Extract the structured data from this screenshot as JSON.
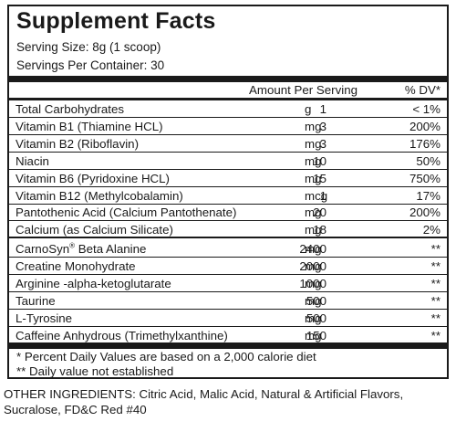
{
  "panel": {
    "title": "Supplement Facts",
    "serving_size": "Serving Size:  8g  (1 scoop)",
    "servings_per_container": "Servings Per Container: 30",
    "header_amount": "Amount Per Serving",
    "header_dv": "% DV*"
  },
  "rows": [
    {
      "name": "Total Carbohydrates",
      "qty": "1",
      "unit": "g",
      "dv": "< 1%"
    },
    {
      "name": "Vitamin B1 (Thiamine HCL)",
      "qty": "3",
      "unit": "mg",
      "dv": "200%"
    },
    {
      "name": "Vitamin B2 (Riboflavin)",
      "qty": "3",
      "unit": "mg",
      "dv": "176%"
    },
    {
      "name": "Niacin",
      "qty": "10",
      "unit": "mg",
      "dv": "50%"
    },
    {
      "name": "Vitamin B6 (Pyridoxine HCL)",
      "qty": "15",
      "unit": "mg",
      "dv": "750%"
    },
    {
      "name": "Vitamin B12 (Methylcobalamin)",
      "qty": "1",
      "unit": "mcg",
      "dv": "17%"
    },
    {
      "name": "Pantothenic Acid (Calcium Pantothenate)",
      "qty": "20",
      "unit": "mg",
      "dv": "200%"
    },
    {
      "name": "Calcium (as Calcium Silicate)",
      "qty": "18",
      "unit": "mg",
      "dv": "2%"
    },
    {
      "name": "CarnoSyn",
      "sup": "®",
      "name_rest": " Beta Alanine",
      "qty": "2400",
      "unit": "mg",
      "dv": "**"
    },
    {
      "name": "Creatine Monohydrate",
      "qty": "2000",
      "unit": "mg",
      "dv": "**"
    },
    {
      "name": "Arginine -alpha-ketoglutarate",
      "qty": "1000",
      "unit": "mg",
      "dv": "**"
    },
    {
      "name": "Taurine",
      "qty": "500",
      "unit": "mg",
      "dv": "**"
    },
    {
      "name": "L-Tyrosine",
      "qty": "500",
      "unit": "mg",
      "dv": "**"
    },
    {
      "name": "Caffeine Anhydrous (Trimethylxanthine)",
      "qty": "150",
      "unit": "mg",
      "dv": "**"
    }
  ],
  "footnotes": {
    "dv_note": "* Percent Daily Values are based on a 2,000 calorie diet",
    "not_established": "** Daily value not established"
  },
  "other_ingredients": "OTHER INGREDIENTS: Citric Acid, Malic Acid, Natural & Artificial Flavors, Sucralose, FD&C Red #40"
}
